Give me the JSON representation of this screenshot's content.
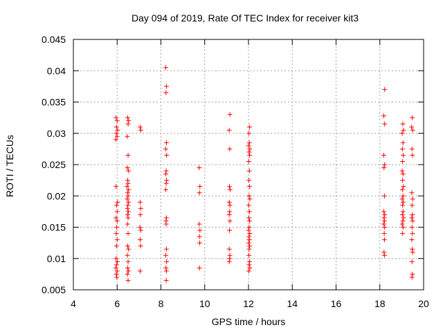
{
  "chart_data": {
    "type": "scatter",
    "title": "Day 094 of 2019, Rate Of TEC Index for receiver kit3",
    "xlabel": "GPS time / hours",
    "ylabel": "ROTI / TECUs",
    "xlim": [
      4,
      20
    ],
    "ylim": [
      0.005,
      0.045
    ],
    "grid": true,
    "marker": "+",
    "marker_color": "#ff0000",
    "x_ticks": [
      4,
      6,
      8,
      10,
      12,
      14,
      16,
      18,
      20
    ],
    "x_tick_labels": [
      "4",
      "6",
      "8",
      "10",
      "12",
      "14",
      "16",
      "18",
      "20"
    ],
    "y_ticks": [
      0.005,
      0.01,
      0.015,
      0.02,
      0.025,
      0.03,
      0.035,
      0.04,
      0.045
    ],
    "y_tick_labels": [
      "0.005",
      "0.01",
      "0.015",
      "0.02",
      "0.025",
      "0.03",
      "0.035",
      "0.04",
      "0.045"
    ],
    "series": [
      {
        "name": "ROTI",
        "points": [
          {
            "x": 5.95,
            "y": 0.0325
          },
          {
            "x": 6.0,
            "y": 0.032
          },
          {
            "x": 5.97,
            "y": 0.031
          },
          {
            "x": 6.02,
            "y": 0.0305
          },
          {
            "x": 5.96,
            "y": 0.03
          },
          {
            "x": 6.0,
            "y": 0.0295
          },
          {
            "x": 5.94,
            "y": 0.029
          },
          {
            "x": 5.95,
            "y": 0.0215
          },
          {
            "x": 6.02,
            "y": 0.019
          },
          {
            "x": 5.97,
            "y": 0.0185
          },
          {
            "x": 6.0,
            "y": 0.0175
          },
          {
            "x": 5.95,
            "y": 0.0165
          },
          {
            "x": 6.0,
            "y": 0.016
          },
          {
            "x": 5.98,
            "y": 0.015
          },
          {
            "x": 5.96,
            "y": 0.014
          },
          {
            "x": 6.0,
            "y": 0.013
          },
          {
            "x": 5.97,
            "y": 0.012
          },
          {
            "x": 5.95,
            "y": 0.01
          },
          {
            "x": 6.01,
            "y": 0.0095
          },
          {
            "x": 5.97,
            "y": 0.009
          },
          {
            "x": 5.94,
            "y": 0.0085
          },
          {
            "x": 6.0,
            "y": 0.008
          },
          {
            "x": 5.96,
            "y": 0.0075
          },
          {
            "x": 5.98,
            "y": 0.007
          },
          {
            "x": 6.48,
            "y": 0.0325
          },
          {
            "x": 6.52,
            "y": 0.032
          },
          {
            "x": 6.5,
            "y": 0.0315
          },
          {
            "x": 6.46,
            "y": 0.0295
          },
          {
            "x": 6.5,
            "y": 0.0265
          },
          {
            "x": 6.47,
            "y": 0.0245
          },
          {
            "x": 6.52,
            "y": 0.024
          },
          {
            "x": 6.48,
            "y": 0.0225
          },
          {
            "x": 6.5,
            "y": 0.022
          },
          {
            "x": 6.45,
            "y": 0.0215
          },
          {
            "x": 6.52,
            "y": 0.021
          },
          {
            "x": 6.48,
            "y": 0.0205
          },
          {
            "x": 6.5,
            "y": 0.02
          },
          {
            "x": 6.46,
            "y": 0.0195
          },
          {
            "x": 6.52,
            "y": 0.019
          },
          {
            "x": 6.49,
            "y": 0.0185
          },
          {
            "x": 6.47,
            "y": 0.018
          },
          {
            "x": 6.51,
            "y": 0.0175
          },
          {
            "x": 6.48,
            "y": 0.017
          },
          {
            "x": 6.5,
            "y": 0.0165
          },
          {
            "x": 6.47,
            "y": 0.0155
          },
          {
            "x": 6.5,
            "y": 0.014
          },
          {
            "x": 6.48,
            "y": 0.012
          },
          {
            "x": 6.52,
            "y": 0.0115
          },
          {
            "x": 6.47,
            "y": 0.0105
          },
          {
            "x": 6.5,
            "y": 0.0095
          },
          {
            "x": 6.48,
            "y": 0.0085
          },
          {
            "x": 6.51,
            "y": 0.008
          },
          {
            "x": 6.47,
            "y": 0.0075
          },
          {
            "x": 6.5,
            "y": 0.0065
          },
          {
            "x": 7.05,
            "y": 0.031
          },
          {
            "x": 7.08,
            "y": 0.0305
          },
          {
            "x": 7.05,
            "y": 0.019
          },
          {
            "x": 7.08,
            "y": 0.018
          },
          {
            "x": 7.06,
            "y": 0.017
          },
          {
            "x": 7.04,
            "y": 0.015
          },
          {
            "x": 7.08,
            "y": 0.0145
          },
          {
            "x": 7.05,
            "y": 0.013
          },
          {
            "x": 7.07,
            "y": 0.012
          },
          {
            "x": 7.05,
            "y": 0.008
          },
          {
            "x": 8.22,
            "y": 0.0405
          },
          {
            "x": 8.25,
            "y": 0.0375
          },
          {
            "x": 8.23,
            "y": 0.0365
          },
          {
            "x": 8.25,
            "y": 0.0285
          },
          {
            "x": 8.22,
            "y": 0.0275
          },
          {
            "x": 8.26,
            "y": 0.0265
          },
          {
            "x": 8.24,
            "y": 0.024
          },
          {
            "x": 8.22,
            "y": 0.0235
          },
          {
            "x": 8.26,
            "y": 0.0225
          },
          {
            "x": 8.24,
            "y": 0.022
          },
          {
            "x": 8.22,
            "y": 0.021
          },
          {
            "x": 8.25,
            "y": 0.0165
          },
          {
            "x": 8.23,
            "y": 0.016
          },
          {
            "x": 8.24,
            "y": 0.0155
          },
          {
            "x": 8.25,
            "y": 0.0115
          },
          {
            "x": 8.22,
            "y": 0.0105
          },
          {
            "x": 8.26,
            "y": 0.0095
          },
          {
            "x": 8.23,
            "y": 0.0085
          },
          {
            "x": 8.25,
            "y": 0.008
          },
          {
            "x": 8.24,
            "y": 0.0065
          },
          {
            "x": 9.75,
            "y": 0.0245
          },
          {
            "x": 9.78,
            "y": 0.0215
          },
          {
            "x": 9.76,
            "y": 0.0205
          },
          {
            "x": 9.75,
            "y": 0.0155
          },
          {
            "x": 9.78,
            "y": 0.0145
          },
          {
            "x": 9.76,
            "y": 0.0135
          },
          {
            "x": 9.77,
            "y": 0.0125
          },
          {
            "x": 9.76,
            "y": 0.0085
          },
          {
            "x": 11.15,
            "y": 0.033
          },
          {
            "x": 11.12,
            "y": 0.0305
          },
          {
            "x": 11.14,
            "y": 0.0275
          },
          {
            "x": 11.13,
            "y": 0.0215
          },
          {
            "x": 11.16,
            "y": 0.021
          },
          {
            "x": 11.12,
            "y": 0.019
          },
          {
            "x": 11.15,
            "y": 0.0185
          },
          {
            "x": 11.14,
            "y": 0.0175
          },
          {
            "x": 11.12,
            "y": 0.017
          },
          {
            "x": 11.15,
            "y": 0.016
          },
          {
            "x": 11.13,
            "y": 0.0145
          },
          {
            "x": 11.12,
            "y": 0.0115
          },
          {
            "x": 11.15,
            "y": 0.0105
          },
          {
            "x": 11.14,
            "y": 0.01
          },
          {
            "x": 11.12,
            "y": 0.0095
          },
          {
            "x": 12.05,
            "y": 0.031
          },
          {
            "x": 12.02,
            "y": 0.03
          },
          {
            "x": 12.04,
            "y": 0.0285
          },
          {
            "x": 12.0,
            "y": 0.028
          },
          {
            "x": 12.06,
            "y": 0.0275
          },
          {
            "x": 12.03,
            "y": 0.027
          },
          {
            "x": 12.05,
            "y": 0.0265
          },
          {
            "x": 12.01,
            "y": 0.0255
          },
          {
            "x": 12.04,
            "y": 0.024
          },
          {
            "x": 12.02,
            "y": 0.0225
          },
          {
            "x": 12.05,
            "y": 0.0215
          },
          {
            "x": 12.03,
            "y": 0.02
          },
          {
            "x": 12.06,
            "y": 0.0195
          },
          {
            "x": 12.01,
            "y": 0.0185
          },
          {
            "x": 12.04,
            "y": 0.0175
          },
          {
            "x": 12.02,
            "y": 0.0165
          },
          {
            "x": 12.05,
            "y": 0.016
          },
          {
            "x": 12.03,
            "y": 0.015
          },
          {
            "x": 12.0,
            "y": 0.0145
          },
          {
            "x": 12.06,
            "y": 0.014
          },
          {
            "x": 12.02,
            "y": 0.0135
          },
          {
            "x": 12.04,
            "y": 0.013
          },
          {
            "x": 12.01,
            "y": 0.0125
          },
          {
            "x": 12.05,
            "y": 0.012
          },
          {
            "x": 12.03,
            "y": 0.0115
          },
          {
            "x": 12.02,
            "y": 0.0105
          },
          {
            "x": 12.05,
            "y": 0.0095
          },
          {
            "x": 12.03,
            "y": 0.009
          },
          {
            "x": 12.06,
            "y": 0.0085
          },
          {
            "x": 12.01,
            "y": 0.008
          },
          {
            "x": 18.22,
            "y": 0.037
          },
          {
            "x": 18.18,
            "y": 0.0328
          },
          {
            "x": 18.22,
            "y": 0.0315
          },
          {
            "x": 18.18,
            "y": 0.0265
          },
          {
            "x": 18.22,
            "y": 0.025
          },
          {
            "x": 18.19,
            "y": 0.0245
          },
          {
            "x": 18.21,
            "y": 0.02
          },
          {
            "x": 18.18,
            "y": 0.0175
          },
          {
            "x": 18.22,
            "y": 0.017
          },
          {
            "x": 18.19,
            "y": 0.0165
          },
          {
            "x": 18.21,
            "y": 0.016
          },
          {
            "x": 18.18,
            "y": 0.0155
          },
          {
            "x": 18.22,
            "y": 0.015
          },
          {
            "x": 18.2,
            "y": 0.014
          },
          {
            "x": 18.21,
            "y": 0.013
          },
          {
            "x": 18.19,
            "y": 0.011
          },
          {
            "x": 18.21,
            "y": 0.0105
          },
          {
            "x": 19.05,
            "y": 0.0315
          },
          {
            "x": 19.08,
            "y": 0.0305
          },
          {
            "x": 19.02,
            "y": 0.03
          },
          {
            "x": 19.06,
            "y": 0.0285
          },
          {
            "x": 19.03,
            "y": 0.0275
          },
          {
            "x": 19.07,
            "y": 0.0265
          },
          {
            "x": 19.04,
            "y": 0.0255
          },
          {
            "x": 19.02,
            "y": 0.024
          },
          {
            "x": 19.06,
            "y": 0.0235
          },
          {
            "x": 19.04,
            "y": 0.0225
          },
          {
            "x": 19.08,
            "y": 0.0215
          },
          {
            "x": 19.03,
            "y": 0.021
          },
          {
            "x": 19.06,
            "y": 0.02
          },
          {
            "x": 19.02,
            "y": 0.0195
          },
          {
            "x": 19.07,
            "y": 0.019
          },
          {
            "x": 19.04,
            "y": 0.0185
          },
          {
            "x": 19.06,
            "y": 0.0175
          },
          {
            "x": 19.03,
            "y": 0.017
          },
          {
            "x": 19.08,
            "y": 0.0165
          },
          {
            "x": 19.05,
            "y": 0.016
          },
          {
            "x": 19.02,
            "y": 0.0155
          },
          {
            "x": 19.06,
            "y": 0.015
          },
          {
            "x": 19.04,
            "y": 0.014
          },
          {
            "x": 19.48,
            "y": 0.0325
          },
          {
            "x": 19.45,
            "y": 0.031
          },
          {
            "x": 19.5,
            "y": 0.0305
          },
          {
            "x": 19.47,
            "y": 0.0275
          },
          {
            "x": 19.49,
            "y": 0.0265
          },
          {
            "x": 19.46,
            "y": 0.0205
          },
          {
            "x": 19.5,
            "y": 0.0195
          },
          {
            "x": 19.47,
            "y": 0.0185
          },
          {
            "x": 19.49,
            "y": 0.017
          },
          {
            "x": 19.46,
            "y": 0.0165
          },
          {
            "x": 19.5,
            "y": 0.016
          },
          {
            "x": 19.47,
            "y": 0.015
          },
          {
            "x": 19.49,
            "y": 0.014
          },
          {
            "x": 19.46,
            "y": 0.013
          },
          {
            "x": 19.48,
            "y": 0.0115
          },
          {
            "x": 19.5,
            "y": 0.011
          },
          {
            "x": 19.47,
            "y": 0.0095
          },
          {
            "x": 19.49,
            "y": 0.0075
          },
          {
            "x": 19.47,
            "y": 0.007
          }
        ]
      }
    ]
  }
}
